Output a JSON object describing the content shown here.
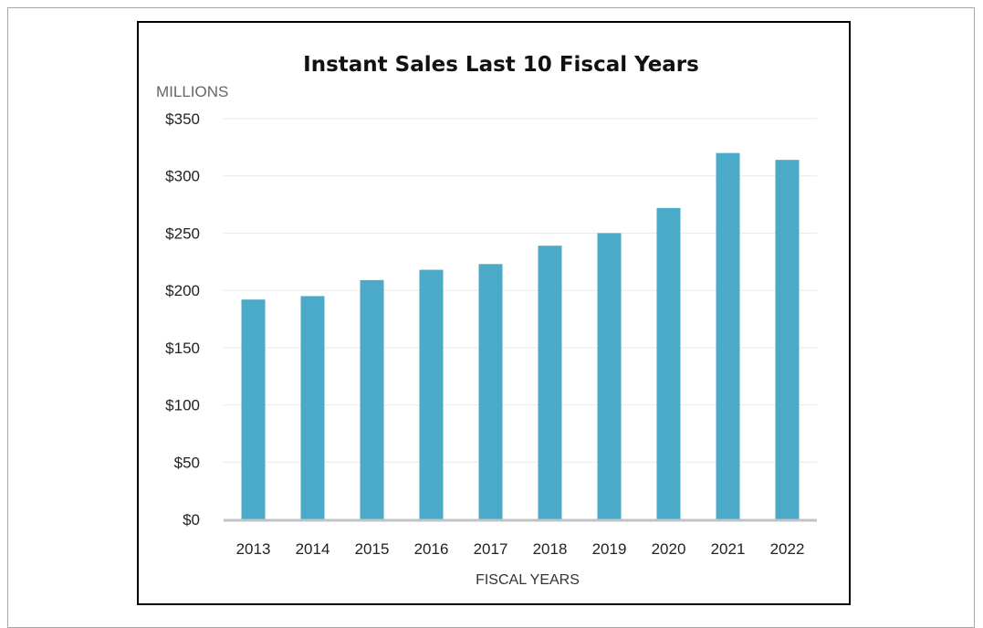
{
  "chart_data": {
    "type": "bar",
    "title": "Instant Sales Last 10 Fiscal Years",
    "units_label": "MILLIONS",
    "xlabel": "FISCAL YEARS",
    "ylabel": "",
    "categories": [
      "2013",
      "2014",
      "2015",
      "2016",
      "2017",
      "2018",
      "2019",
      "2020",
      "2021",
      "2022"
    ],
    "values": [
      192,
      195,
      209,
      218,
      223,
      239,
      250,
      272,
      320,
      314
    ],
    "ylim": [
      0,
      350
    ],
    "yticks": [
      0,
      50,
      100,
      150,
      200,
      250,
      300,
      350
    ],
    "ytick_labels": [
      "$0",
      "$50",
      "$100",
      "$150",
      "$200",
      "$250",
      "$300",
      "$350"
    ],
    "grid": true,
    "legend": "none",
    "bar_color": "#4aaac8"
  }
}
